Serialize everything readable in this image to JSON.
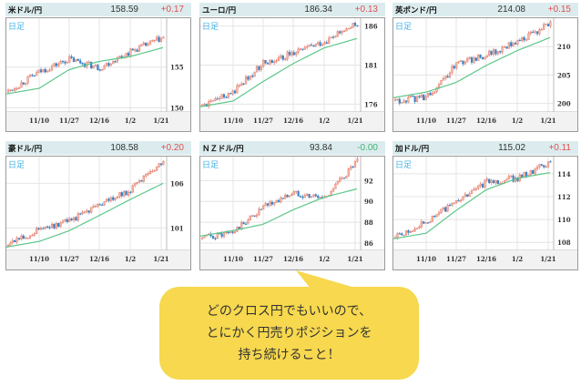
{
  "colors": {
    "header_bg": "#dcecee",
    "up": "#e05050",
    "flat": "#3cb371",
    "candle_up": "#e07060",
    "candle_down": "#3b82c4",
    "ma_line": "#5cc78a",
    "period_label": "#42b4e6",
    "bubble": "#f7d84e"
  },
  "panels": [
    {
      "pair": "米ドル/円",
      "price": "158.59",
      "change": "+0.17",
      "direction": "up",
      "period": "日足",
      "y_ticks": [
        "155",
        "150"
      ],
      "x_ticks": [
        "11/10",
        "11/27",
        "12/16",
        "1/2",
        "1/21"
      ]
    },
    {
      "pair": "ユーロ/円",
      "price": "186.34",
      "change": "+0.13",
      "direction": "up",
      "period": "日足",
      "y_ticks": [
        "186",
        "181",
        "176"
      ],
      "x_ticks": [
        "11/10",
        "11/27",
        "12/16",
        "1/2",
        "1/21"
      ]
    },
    {
      "pair": "英ポンド/円",
      "price": "214.08",
      "change": "+0.15",
      "direction": "up",
      "period": "日足",
      "y_ticks": [
        "210",
        "205",
        "200"
      ],
      "x_ticks": [
        "11/10",
        "11/27",
        "12/16",
        "1/2",
        "1/21"
      ]
    },
    {
      "pair": "豪ドル/円",
      "price": "108.58",
      "change": "+0.20",
      "direction": "up",
      "period": "日足",
      "y_ticks": [
        "106",
        "101"
      ],
      "x_ticks": [
        "11/10",
        "11/27",
        "12/16",
        "1/2",
        "1/21"
      ]
    },
    {
      "pair": "ＮＺドル/円",
      "price": "93.84",
      "change": "-0.00",
      "direction": "flat",
      "period": "日足",
      "y_ticks": [
        "92",
        "90",
        "88",
        "86"
      ],
      "x_ticks": [
        "11/10",
        "11/27",
        "12/16",
        "1/2",
        "1/21"
      ]
    },
    {
      "pair": "加ドル/円",
      "price": "115.02",
      "change": "+0.11",
      "direction": "up",
      "period": "日足",
      "y_ticks": [
        "114",
        "112",
        "110",
        "108"
      ],
      "x_ticks": [
        "11/10",
        "11/27",
        "12/16",
        "1/2",
        "1/21"
      ]
    }
  ],
  "callout": {
    "lines": [
      "どのクロス円でもいいので、",
      "とにかく円売りポジションを",
      "持ち続けること！"
    ]
  },
  "chart_data": [
    {
      "type": "line",
      "title": "米ドル/円",
      "subtitle": "日足",
      "last_price": 158.59,
      "change": 0.17,
      "x": [
        "11/10",
        "11/27",
        "12/16",
        "1/2",
        "1/21"
      ],
      "series": [
        {
          "name": "close",
          "values": [
            154.4,
            156.0,
            154.9,
            156.9,
            158.6
          ]
        },
        {
          "name": "moving_average",
          "values": [
            152.4,
            154.7,
            155.7,
            156.3,
            157.4
          ]
        }
      ],
      "ylim": [
        149.5,
        161
      ],
      "grid": true
    },
    {
      "type": "line",
      "title": "ユーロ/円",
      "subtitle": "日足",
      "last_price": 186.34,
      "change": 0.13,
      "x": [
        "11/10",
        "11/27",
        "12/16",
        "1/2",
        "1/21"
      ],
      "series": [
        {
          "name": "close",
          "values": [
            177.5,
            181.3,
            182.5,
            184.0,
            186.3
          ]
        },
        {
          "name": "moving_average",
          "values": [
            176.4,
            178.9,
            181.2,
            183.2,
            184.4
          ]
        }
      ],
      "ylim": [
        175,
        187
      ],
      "grid": true
    },
    {
      "type": "line",
      "title": "英ポンド/円",
      "subtitle": "日足",
      "last_price": 214.08,
      "change": 0.15,
      "x": [
        "11/10",
        "11/27",
        "12/16",
        "1/2",
        "1/21"
      ],
      "series": [
        {
          "name": "close",
          "values": [
            201.0,
            206.8,
            208.5,
            210.8,
            214.1
          ]
        },
        {
          "name": "moving_average",
          "values": [
            202.0,
            203.7,
            206.7,
            209.3,
            211.6
          ]
        }
      ],
      "ylim": [
        198.5,
        215
      ],
      "grid": true
    },
    {
      "type": "line",
      "title": "豪ドル/円",
      "subtitle": "日足",
      "last_price": 108.58,
      "change": 0.2,
      "x": [
        "11/10",
        "11/27",
        "12/16",
        "1/2",
        "1/21"
      ],
      "series": [
        {
          "name": "close",
          "values": [
            100.8,
            101.8,
            103.5,
            105.2,
            108.6
          ]
        },
        {
          "name": "moving_average",
          "values": [
            99.5,
            100.7,
            102.4,
            104.2,
            106.0
          ]
        }
      ],
      "ylim": [
        98.5,
        109
      ],
      "grid": true
    },
    {
      "type": "line",
      "title": "ＮＺドル/円",
      "subtitle": "日足",
      "last_price": 93.84,
      "change": -0.0,
      "x": [
        "11/10",
        "11/27",
        "12/16",
        "1/2",
        "1/21"
      ],
      "series": [
        {
          "name": "close",
          "values": [
            87.0,
            89.4,
            90.8,
            90.3,
            93.8
          ]
        },
        {
          "name": "moving_average",
          "values": [
            87.2,
            87.8,
            89.2,
            90.4,
            91.2
          ]
        }
      ],
      "ylim": [
        85.3,
        94.3
      ],
      "grid": true
    },
    {
      "type": "line",
      "title": "加ドル/円",
      "subtitle": "日足",
      "last_price": 115.02,
      "change": 0.11,
      "x": [
        "11/10",
        "11/27",
        "12/16",
        "1/2",
        "1/21"
      ],
      "series": [
        {
          "name": "close",
          "values": [
            109.8,
            111.5,
            113.3,
            113.6,
            115.0
          ]
        },
        {
          "name": "moving_average",
          "values": [
            108.8,
            110.8,
            112.6,
            113.6,
            114.1
          ]
        }
      ],
      "ylim": [
        107.3,
        115.5
      ],
      "grid": true
    }
  ]
}
